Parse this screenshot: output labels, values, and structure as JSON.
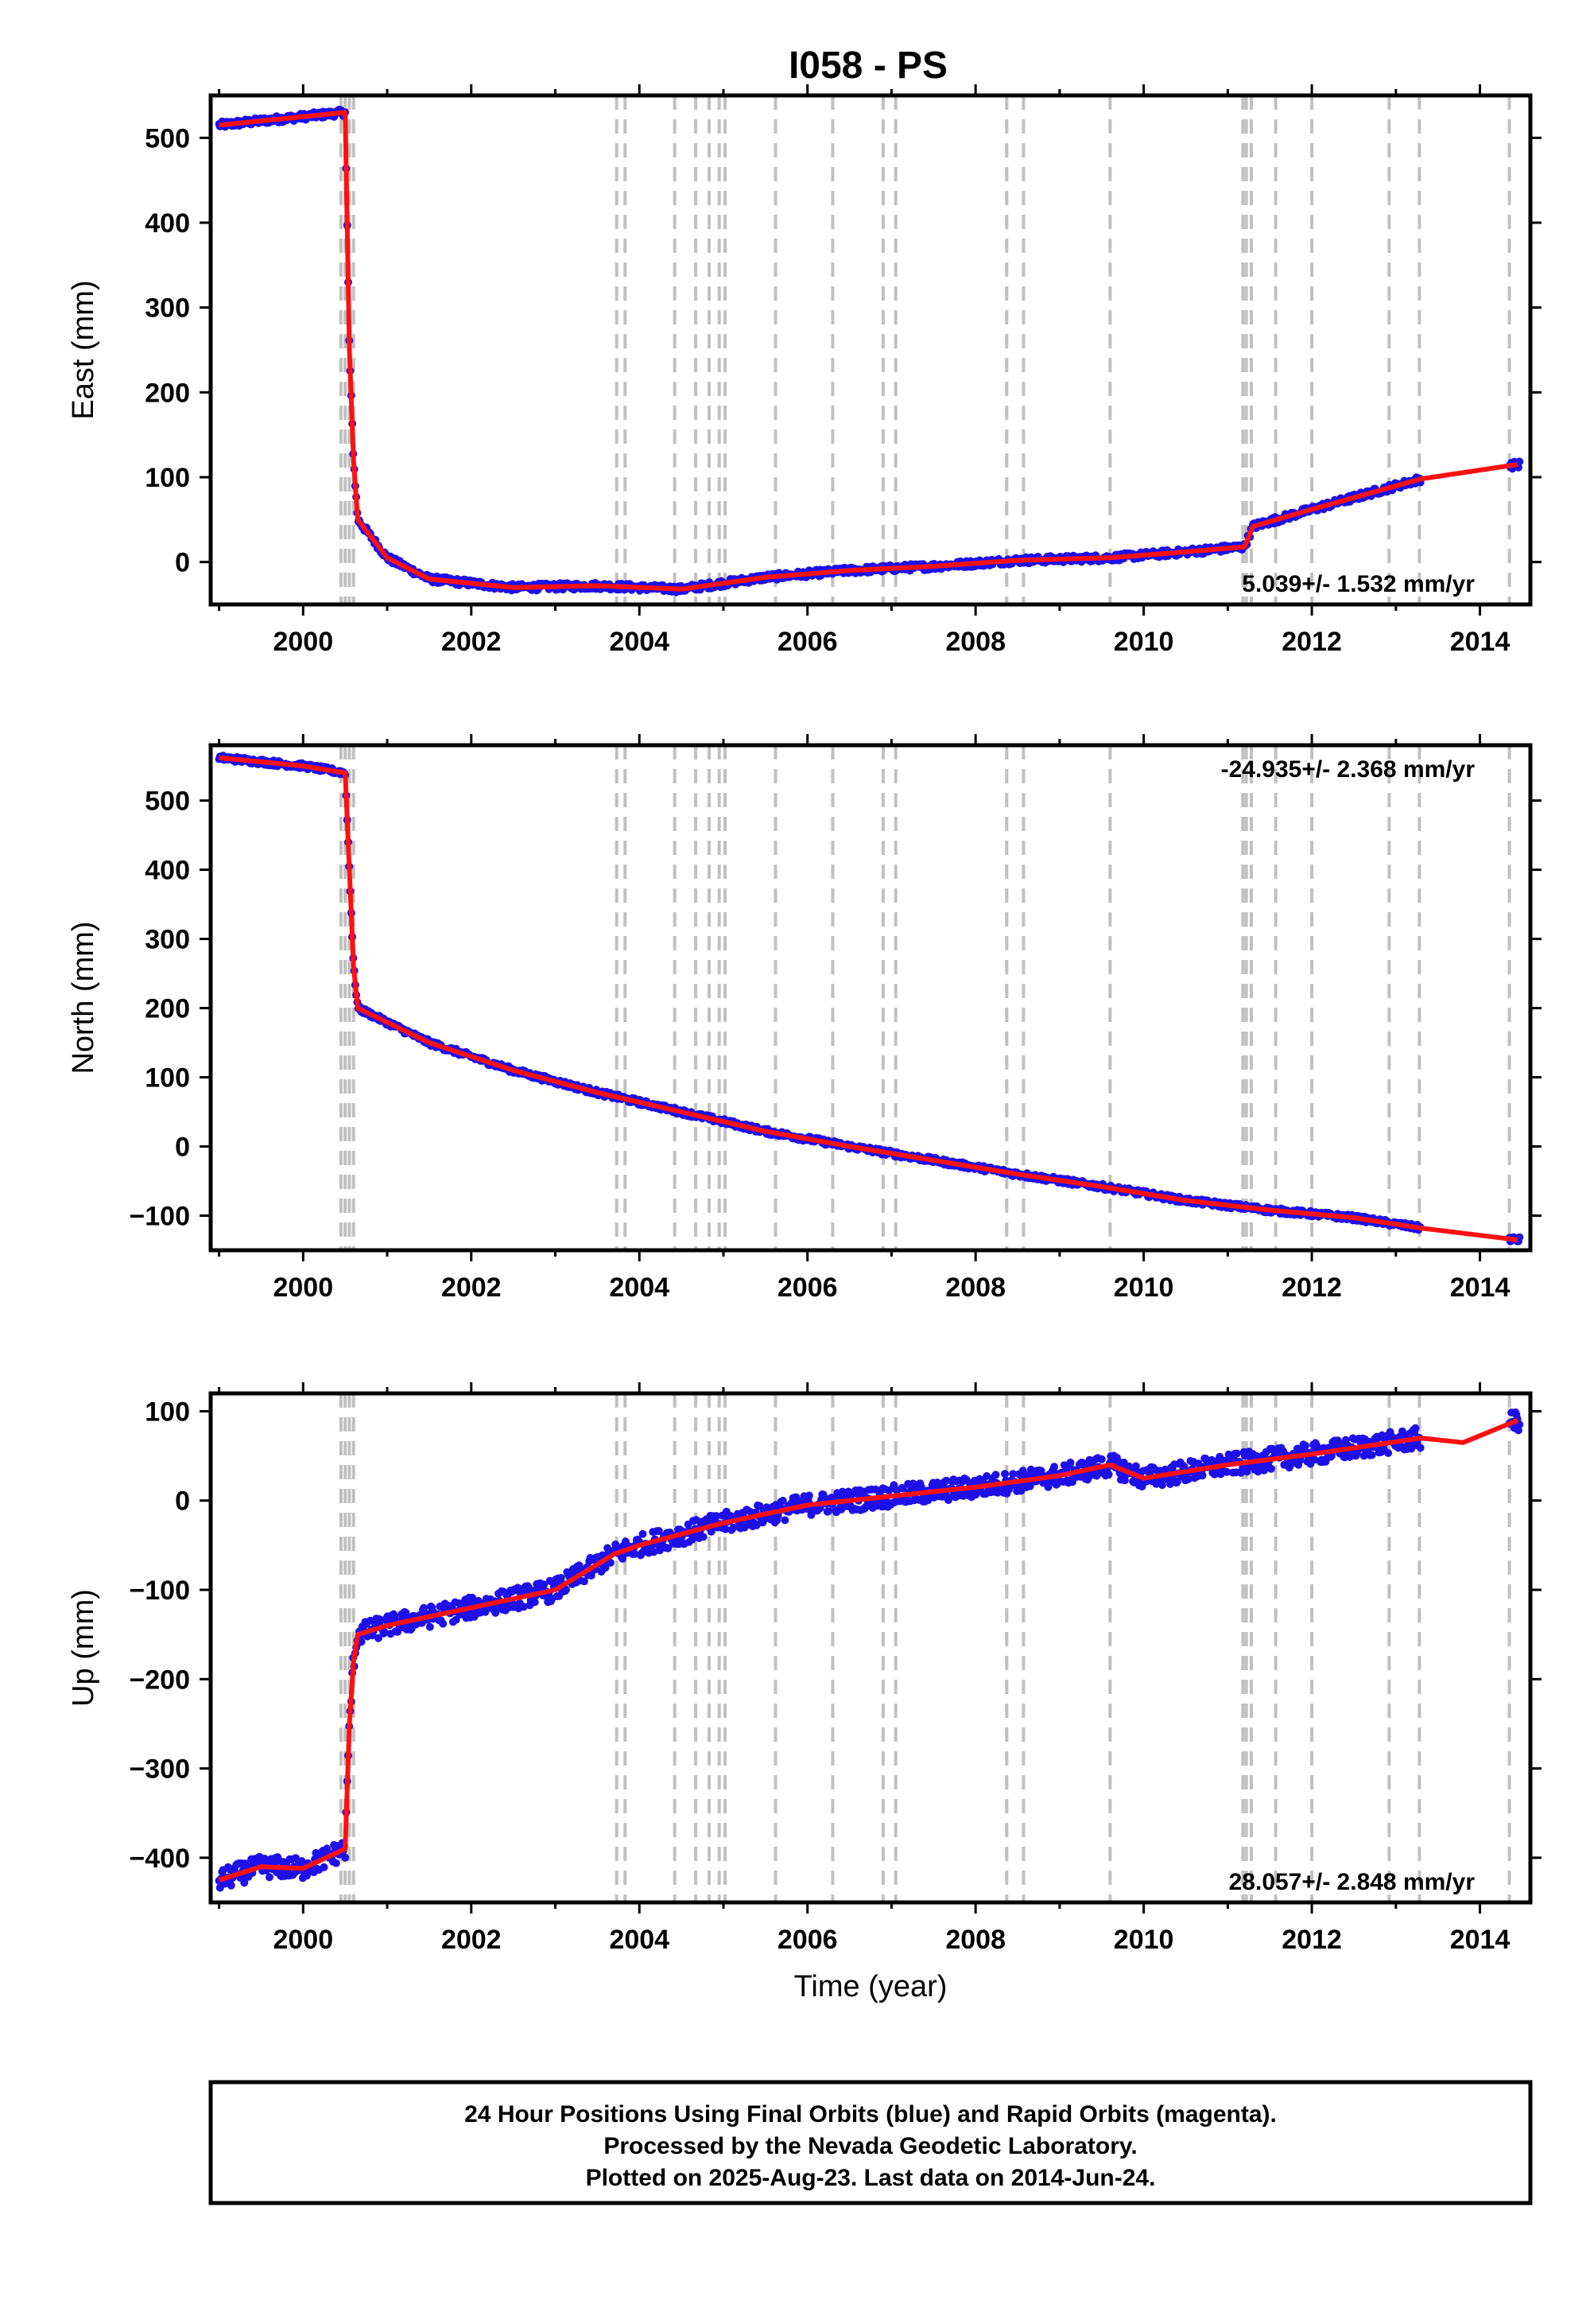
{
  "title": "I058 - PS",
  "footer": {
    "line1": "24 Hour Positions Using Final Orbits (blue) and Rapid Orbits (magenta).",
    "line2": "Processed by the Nevada Geodetic Laboratory.",
    "line3": "Plotted on 2025-Aug-23. Last data on 2014-Jun-24."
  },
  "colors": {
    "data": "#1f10e8",
    "model": "#ff1010",
    "steps": "#c0c0c0",
    "frame": "#000000"
  },
  "chart_data": [
    {
      "type": "scatter",
      "component": "east",
      "ylabel": "East (mm)",
      "xlabel": "",
      "xlim": [
        1998.9,
        2014.6
      ],
      "ylim": [
        -50,
        550
      ],
      "xticks": [
        2000,
        2002,
        2004,
        2006,
        2008,
        2010,
        2012,
        2014
      ],
      "yticks": [
        0,
        100,
        200,
        300,
        400,
        500
      ],
      "rate": "5.039+/- 1.532 mm/yr",
      "rate_position": "bottom-right",
      "data_end": 2013.3,
      "noise": 4,
      "steps": [
        2000.45,
        2000.5,
        2000.55,
        2000.6,
        2003.73,
        2003.83,
        2004.42,
        2004.67,
        2004.83,
        2004.95,
        2005.02,
        2005.62,
        2006.3,
        2006.9,
        2007.05,
        2008.37,
        2008.57,
        2009.6,
        2011.18,
        2011.22,
        2011.28,
        2011.57,
        2012.0,
        2012.92,
        2013.28,
        2014.35
      ],
      "series": [
        {
          "x": [
            1999.0,
            2000.0,
            2000.5,
            2000.55,
            2000.6,
            2000.65,
            2001.0,
            2001.5,
            2002.5,
            2003.5,
            2004.5,
            2005.5,
            2006.5,
            2007.5,
            2008.5,
            2009.6,
            2010.5,
            2011.2,
            2011.3,
            2012.0,
            2013.3,
            2014.45
          ],
          "y": [
            515,
            525,
            530,
            250,
            120,
            50,
            5,
            -20,
            -30,
            -28,
            -32,
            -18,
            -10,
            -5,
            2,
            5,
            12,
            18,
            42,
            62,
            98,
            115
          ]
        }
      ]
    },
    {
      "type": "scatter",
      "component": "north",
      "ylabel": "North (mm)",
      "xlabel": "",
      "xlim": [
        1998.9,
        2014.6
      ],
      "ylim": [
        -150,
        580
      ],
      "xticks": [
        2000,
        2002,
        2004,
        2006,
        2008,
        2010,
        2012,
        2014
      ],
      "yticks": [
        -100,
        0,
        100,
        200,
        300,
        400,
        500
      ],
      "rate": "-24.935+/- 2.368 mm/yr",
      "rate_position": "top-right",
      "data_end": 2013.3,
      "noise": 4,
      "steps": [
        2000.45,
        2000.5,
        2000.55,
        2000.6,
        2003.73,
        2003.83,
        2004.42,
        2004.67,
        2004.83,
        2004.95,
        2005.02,
        2005.62,
        2006.3,
        2006.9,
        2007.05,
        2008.37,
        2008.57,
        2009.6,
        2011.18,
        2011.22,
        2011.28,
        2011.57,
        2012.0,
        2012.92,
        2013.28,
        2014.35
      ],
      "series": [
        {
          "x": [
            1999.0,
            2000.0,
            2000.5,
            2000.55,
            2000.6,
            2000.65,
            2001.5,
            2002.5,
            2003.5,
            2004.5,
            2005.5,
            2006.5,
            2007.5,
            2008.5,
            2009.5,
            2010.5,
            2011.5,
            2012.5,
            2013.3,
            2014.45
          ],
          "y": [
            562,
            550,
            540,
            400,
            260,
            200,
            150,
            110,
            78,
            50,
            22,
            0,
            -20,
            -40,
            -58,
            -78,
            -92,
            -103,
            -118,
            -135
          ]
        }
      ]
    },
    {
      "type": "scatter",
      "component": "up",
      "ylabel": "Up (mm)",
      "xlabel": "Time (year)",
      "xlim": [
        1998.9,
        2014.6
      ],
      "ylim": [
        -450,
        120
      ],
      "xticks": [
        2000,
        2002,
        2004,
        2006,
        2008,
        2010,
        2012,
        2014
      ],
      "yticks": [
        -400,
        -300,
        -200,
        -100,
        0,
        100
      ],
      "rate": "28.057+/- 2.848 mm/yr",
      "rate_position": "bottom-right",
      "data_end": 2013.3,
      "noise": 12,
      "steps": [
        2000.45,
        2000.5,
        2000.55,
        2000.6,
        2003.73,
        2003.83,
        2004.42,
        2004.67,
        2004.83,
        2004.95,
        2005.02,
        2005.62,
        2006.3,
        2006.9,
        2007.05,
        2008.37,
        2008.57,
        2009.6,
        2011.18,
        2011.22,
        2011.28,
        2011.57,
        2012.0,
        2012.92,
        2013.28,
        2014.35
      ],
      "series": [
        {
          "x": [
            1999.0,
            1999.5,
            2000.0,
            2000.5,
            2000.55,
            2000.6,
            2000.65,
            2001.0,
            2002.0,
            2003.0,
            2003.7,
            2004.0,
            2005.0,
            2006.0,
            2007.0,
            2008.0,
            2009.0,
            2009.6,
            2010.0,
            2011.0,
            2012.0,
            2013.3,
            2013.8,
            2014.45
          ],
          "y": [
            -425,
            -410,
            -412,
            -390,
            -250,
            -180,
            -150,
            -140,
            -120,
            -100,
            -60,
            -50,
            -25,
            -5,
            5,
            15,
            28,
            40,
            25,
            40,
            52,
            70,
            65,
            90
          ]
        }
      ]
    }
  ]
}
